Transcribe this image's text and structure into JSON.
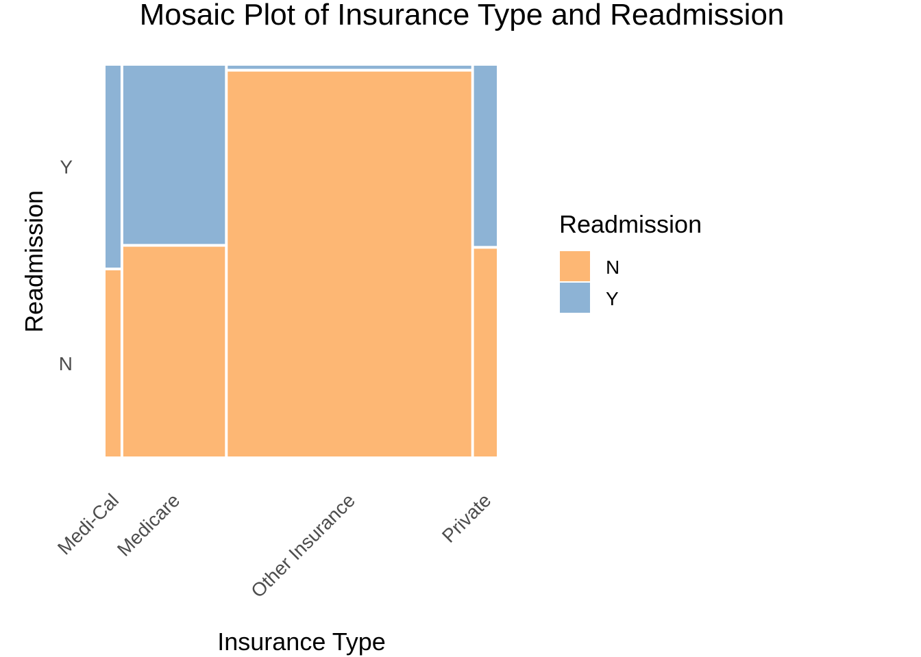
{
  "chart_data": {
    "type": "mosaic",
    "title": "Mosaic Plot of Insurance Type and Readmission",
    "xlabel": "Insurance Type",
    "ylabel": "Readmission",
    "categories": [
      "Medi-Cal",
      "Medicare",
      "Other Insurance",
      "Private"
    ],
    "category_share": [
      0.045,
      0.265,
      0.625,
      0.065
    ],
    "series": [
      {
        "name": "N",
        "values": [
          0.48,
          0.54,
          0.985,
          0.535
        ]
      },
      {
        "name": "Y",
        "values": [
          0.52,
          0.46,
          0.015,
          0.465
        ]
      }
    ],
    "y_ticks": [
      "N",
      "Y"
    ],
    "legend": {
      "title": "Readmission",
      "entries": [
        "N",
        "Y"
      ],
      "position": "right"
    },
    "colors": {
      "N": "#FDB774",
      "Y": "#8DB3D5",
      "gap": "#ffffff"
    },
    "grid": false
  }
}
